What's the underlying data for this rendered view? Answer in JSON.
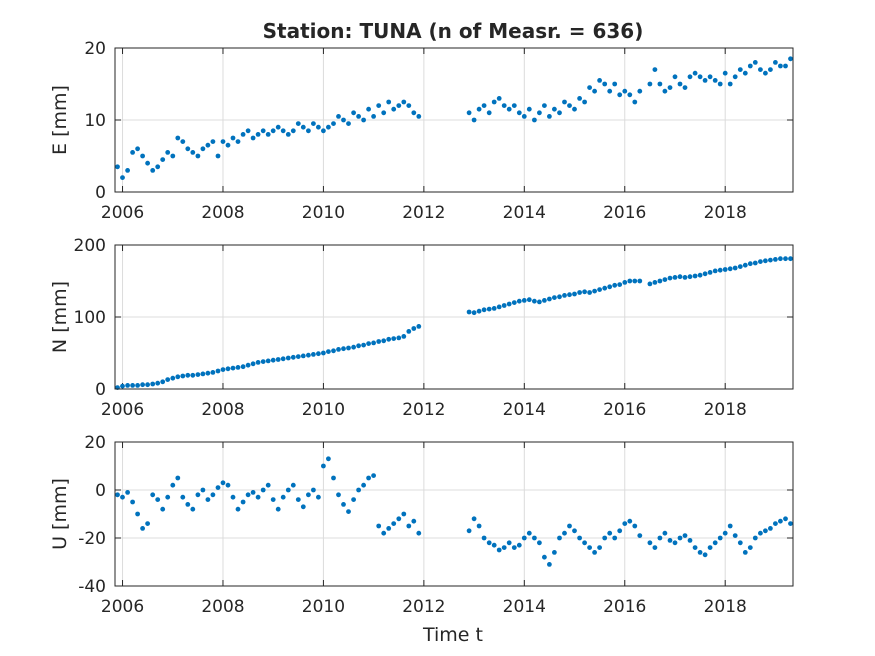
{
  "chart_data": {
    "type": "scatter",
    "title": "Station: TUNA (n of Measr. = 636)",
    "xlabel": "Time t",
    "xlim": [
      2005.85,
      2019.35
    ],
    "xticks": [
      2006,
      2008,
      2010,
      2012,
      2014,
      2016,
      2018
    ],
    "grid": true,
    "marker_color": "#0072BD",
    "panels": [
      {
        "ylabel": "E [mm]",
        "ylim": [
          0,
          20
        ],
        "yticks": [
          0,
          10,
          20
        ],
        "series": [
          {
            "x": [
              2005.9,
              2006.0,
              2006.1,
              2006.2,
              2006.3,
              2006.4,
              2006.5,
              2006.6,
              2006.7,
              2006.8,
              2006.9,
              2007.0,
              2007.1,
              2007.2,
              2007.3,
              2007.4,
              2007.5,
              2007.6,
              2007.7,
              2007.8,
              2007.9,
              2008.0,
              2008.1,
              2008.2,
              2008.3,
              2008.4,
              2008.5,
              2008.6,
              2008.7,
              2008.8,
              2008.9,
              2009.0,
              2009.1,
              2009.2,
              2009.3,
              2009.4,
              2009.5,
              2009.6,
              2009.7,
              2009.8,
              2009.9,
              2010.0,
              2010.1,
              2010.2,
              2010.3,
              2010.4,
              2010.5,
              2010.6,
              2010.7,
              2010.8,
              2010.9,
              2011.0,
              2011.1,
              2011.2,
              2011.3,
              2011.4,
              2011.5,
              2011.6,
              2011.7,
              2011.8,
              2011.9,
              2012.9,
              2013.0,
              2013.1,
              2013.2,
              2013.3,
              2013.4,
              2013.5,
              2013.6,
              2013.7,
              2013.8,
              2013.9,
              2014.0,
              2014.1,
              2014.2,
              2014.3,
              2014.4,
              2014.5,
              2014.6,
              2014.7,
              2014.8,
              2014.9,
              2015.0,
              2015.1,
              2015.2,
              2015.3,
              2015.4,
              2015.5,
              2015.6,
              2015.7,
              2015.8,
              2015.9,
              2016.0,
              2016.1,
              2016.2,
              2016.3,
              2016.5,
              2016.6,
              2016.7,
              2016.8,
              2016.9,
              2017.0,
              2017.1,
              2017.2,
              2017.3,
              2017.4,
              2017.5,
              2017.6,
              2017.7,
              2017.8,
              2017.9,
              2018.0,
              2018.1,
              2018.2,
              2018.3,
              2018.4,
              2018.5,
              2018.6,
              2018.7,
              2018.8,
              2018.9,
              2019.0,
              2019.1,
              2019.2,
              2019.3
            ],
            "y": [
              3.5,
              2.0,
              3.0,
              5.5,
              6.0,
              5.0,
              4.0,
              3.0,
              3.5,
              4.5,
              5.5,
              5.0,
              7.5,
              7.0,
              6.0,
              5.5,
              5.0,
              6.0,
              6.5,
              7.0,
              5.0,
              7.0,
              6.5,
              7.5,
              7.0,
              8.0,
              8.5,
              7.5,
              8.0,
              8.5,
              8.0,
              8.5,
              9.0,
              8.5,
              8.0,
              8.5,
              9.5,
              9.0,
              8.5,
              9.5,
              9.0,
              8.5,
              9.0,
              9.5,
              10.5,
              10.0,
              9.5,
              11.0,
              10.5,
              10.0,
              11.5,
              10.5,
              12.0,
              11.0,
              12.5,
              11.5,
              12.0,
              12.5,
              12.0,
              11.0,
              10.5,
              11.0,
              10.0,
              11.5,
              12.0,
              11.0,
              12.5,
              13.0,
              12.0,
              11.5,
              12.0,
              11.0,
              10.5,
              11.5,
              10.0,
              11.0,
              12.0,
              10.5,
              11.5,
              11.0,
              12.5,
              12.0,
              11.5,
              13.0,
              12.5,
              14.5,
              14.0,
              15.5,
              15.0,
              14.0,
              15.0,
              13.5,
              14.0,
              13.5,
              12.5,
              14.0,
              15.0,
              17.0,
              15.0,
              14.0,
              14.5,
              16.0,
              15.0,
              14.5,
              16.0,
              16.5,
              16.0,
              15.5,
              16.0,
              15.5,
              15.0,
              16.5,
              15.0,
              16.0,
              17.0,
              16.5,
              17.5,
              18.0,
              17.0,
              16.5,
              17.0,
              18.0,
              17.5,
              17.5,
              18.5
            ]
          }
        ]
      },
      {
        "ylabel": "N [mm]",
        "ylim": [
          0,
          200
        ],
        "yticks": [
          0,
          100,
          200
        ],
        "series": [
          {
            "x": [
              2005.9,
              2006.0,
              2006.1,
              2006.2,
              2006.3,
              2006.4,
              2006.5,
              2006.6,
              2006.7,
              2006.8,
              2006.9,
              2007.0,
              2007.1,
              2007.2,
              2007.3,
              2007.4,
              2007.5,
              2007.6,
              2007.7,
              2007.8,
              2007.9,
              2008.0,
              2008.1,
              2008.2,
              2008.3,
              2008.4,
              2008.5,
              2008.6,
              2008.7,
              2008.8,
              2008.9,
              2009.0,
              2009.1,
              2009.2,
              2009.3,
              2009.4,
              2009.5,
              2009.6,
              2009.7,
              2009.8,
              2009.9,
              2010.0,
              2010.1,
              2010.2,
              2010.3,
              2010.4,
              2010.5,
              2010.6,
              2010.7,
              2010.8,
              2010.9,
              2011.0,
              2011.1,
              2011.2,
              2011.3,
              2011.4,
              2011.5,
              2011.6,
              2011.7,
              2011.8,
              2011.9,
              2012.9,
              2013.0,
              2013.1,
              2013.2,
              2013.3,
              2013.4,
              2013.5,
              2013.6,
              2013.7,
              2013.8,
              2013.9,
              2014.0,
              2014.1,
              2014.2,
              2014.3,
              2014.4,
              2014.5,
              2014.6,
              2014.7,
              2014.8,
              2014.9,
              2015.0,
              2015.1,
              2015.2,
              2015.3,
              2015.4,
              2015.5,
              2015.6,
              2015.7,
              2015.8,
              2015.9,
              2016.0,
              2016.1,
              2016.2,
              2016.3,
              2016.5,
              2016.6,
              2016.7,
              2016.8,
              2016.9,
              2017.0,
              2017.1,
              2017.2,
              2017.3,
              2017.4,
              2017.5,
              2017.6,
              2017.7,
              2017.8,
              2017.9,
              2018.0,
              2018.1,
              2018.2,
              2018.3,
              2018.4,
              2018.5,
              2018.6,
              2018.7,
              2018.8,
              2018.9,
              2019.0,
              2019.1,
              2019.2,
              2019.3
            ],
            "y": [
              2,
              4,
              5,
              5,
              5,
              6,
              6,
              7,
              8,
              10,
              13,
              15,
              17,
              18,
              19,
              19,
              20,
              21,
              22,
              23,
              25,
              27,
              28,
              29,
              30,
              31,
              33,
              35,
              37,
              38,
              39,
              40,
              41,
              42,
              43,
              44,
              45,
              46,
              47,
              48,
              49,
              50,
              52,
              53,
              55,
              56,
              57,
              58,
              60,
              61,
              63,
              64,
              66,
              67,
              69,
              70,
              71,
              73,
              80,
              84,
              87,
              107,
              106,
              108,
              110,
              111,
              112,
              114,
              116,
              118,
              120,
              122,
              123,
              124,
              122,
              121,
              123,
              125,
              127,
              128,
              130,
              131,
              132,
              134,
              135,
              134,
              136,
              138,
              140,
              142,
              144,
              145,
              148,
              150,
              150,
              150,
              146,
              148,
              150,
              152,
              154,
              155,
              156,
              155,
              156,
              157,
              158,
              160,
              162,
              164,
              165,
              166,
              167,
              168,
              170,
              172,
              174,
              175,
              177,
              178,
              179,
              180,
              181,
              181,
              181
            ]
          }
        ]
      },
      {
        "ylabel": "U [mm]",
        "ylim": [
          -40,
          20
        ],
        "yticks": [
          -40,
          -20,
          0,
          20
        ],
        "series": [
          {
            "x": [
              2005.9,
              2006.0,
              2006.1,
              2006.2,
              2006.3,
              2006.4,
              2006.5,
              2006.6,
              2006.7,
              2006.8,
              2006.9,
              2007.0,
              2007.1,
              2007.2,
              2007.3,
              2007.4,
              2007.5,
              2007.6,
              2007.7,
              2007.8,
              2007.9,
              2008.0,
              2008.1,
              2008.2,
              2008.3,
              2008.4,
              2008.5,
              2008.6,
              2008.7,
              2008.8,
              2008.9,
              2009.0,
              2009.1,
              2009.2,
              2009.3,
              2009.4,
              2009.5,
              2009.6,
              2009.7,
              2009.8,
              2009.9,
              2010.0,
              2010.1,
              2010.2,
              2010.3,
              2010.4,
              2010.5,
              2010.6,
              2010.7,
              2010.8,
              2010.9,
              2011.0,
              2011.1,
              2011.2,
              2011.3,
              2011.4,
              2011.5,
              2011.6,
              2011.7,
              2011.8,
              2011.9,
              2012.9,
              2013.0,
              2013.1,
              2013.2,
              2013.3,
              2013.4,
              2013.5,
              2013.6,
              2013.7,
              2013.8,
              2013.9,
              2014.0,
              2014.1,
              2014.2,
              2014.3,
              2014.4,
              2014.5,
              2014.6,
              2014.7,
              2014.8,
              2014.9,
              2015.0,
              2015.1,
              2015.2,
              2015.3,
              2015.4,
              2015.5,
              2015.6,
              2015.7,
              2015.8,
              2015.9,
              2016.0,
              2016.1,
              2016.2,
              2016.3,
              2016.5,
              2016.6,
              2016.7,
              2016.8,
              2016.9,
              2017.0,
              2017.1,
              2017.2,
              2017.3,
              2017.4,
              2017.5,
              2017.6,
              2017.7,
              2017.8,
              2017.9,
              2018.0,
              2018.1,
              2018.2,
              2018.3,
              2018.4,
              2018.5,
              2018.6,
              2018.7,
              2018.8,
              2018.9,
              2019.0,
              2019.1,
              2019.2,
              2019.3
            ],
            "y": [
              -2,
              -3,
              -1,
              -5,
              -10,
              -16,
              -14,
              -2,
              -4,
              -8,
              -3,
              2,
              5,
              -3,
              -6,
              -8,
              -2,
              0,
              -4,
              -2,
              1,
              3,
              2,
              -3,
              -8,
              -5,
              -2,
              -1,
              -3,
              0,
              2,
              -4,
              -8,
              -3,
              0,
              2,
              -4,
              -7,
              -2,
              0,
              -3,
              10,
              13,
              5,
              -2,
              -6,
              -9,
              -4,
              0,
              2,
              5,
              6,
              -15,
              -18,
              -16,
              -14,
              -12,
              -10,
              -15,
              -13,
              -18,
              -17,
              -12,
              -15,
              -20,
              -22,
              -23,
              -25,
              -24,
              -22,
              -24,
              -23,
              -20,
              -18,
              -20,
              -22,
              -28,
              -31,
              -26,
              -20,
              -18,
              -15,
              -17,
              -20,
              -22,
              -24,
              -26,
              -24,
              -20,
              -18,
              -20,
              -17,
              -14,
              -13,
              -15,
              -19,
              -22,
              -24,
              -20,
              -18,
              -21,
              -22,
              -20,
              -19,
              -21,
              -24,
              -26,
              -27,
              -24,
              -22,
              -20,
              -18,
              -15,
              -19,
              -22,
              -26,
              -24,
              -20,
              -18,
              -17,
              -16,
              -14,
              -13,
              -12,
              -14
            ]
          }
        ]
      }
    ]
  }
}
